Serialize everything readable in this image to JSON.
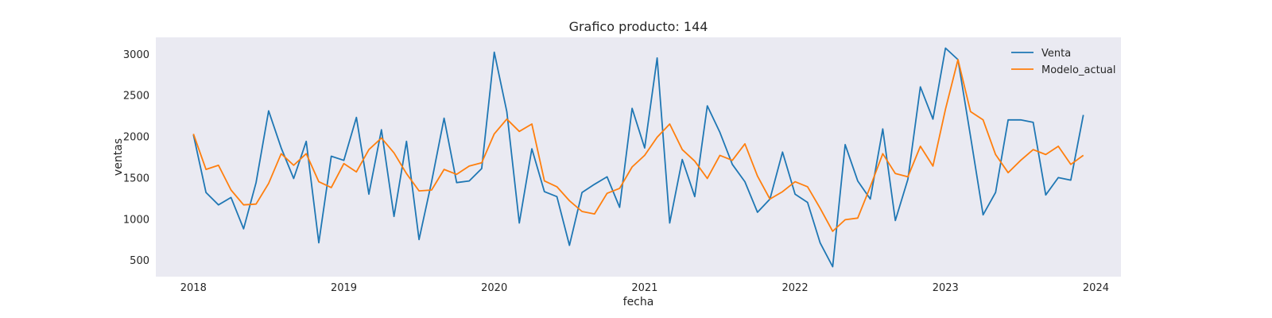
{
  "chart_data": {
    "type": "line",
    "title": "Grafico producto: 144",
    "xlabel": "fecha",
    "ylabel": "ventas",
    "x_ticks": [
      "2018",
      "2019",
      "2020",
      "2021",
      "2022",
      "2023",
      "2024"
    ],
    "y_ticks": [
      500,
      1000,
      1500,
      2000,
      2500,
      3000
    ],
    "xlim": [
      "2017-10",
      "2024-03"
    ],
    "ylim": [
      300,
      3200
    ],
    "grid": false,
    "legend_position": "top-right",
    "background": "#eaeaf2",
    "x": [
      "2018-01",
      "2018-02",
      "2018-03",
      "2018-04",
      "2018-05",
      "2018-06",
      "2018-07",
      "2018-08",
      "2018-09",
      "2018-10",
      "2018-11",
      "2018-12",
      "2019-01",
      "2019-02",
      "2019-03",
      "2019-04",
      "2019-05",
      "2019-06",
      "2019-07",
      "2019-08",
      "2019-09",
      "2019-10",
      "2019-11",
      "2019-12",
      "2020-01",
      "2020-02",
      "2020-03",
      "2020-04",
      "2020-05",
      "2020-06",
      "2020-07",
      "2020-08",
      "2020-09",
      "2020-10",
      "2020-11",
      "2020-12",
      "2021-01",
      "2021-02",
      "2021-03",
      "2021-04",
      "2021-05",
      "2021-06",
      "2021-07",
      "2021-08",
      "2021-09",
      "2021-10",
      "2021-11",
      "2021-12",
      "2022-01",
      "2022-02",
      "2022-03",
      "2022-04",
      "2022-05",
      "2022-06",
      "2022-07",
      "2022-08",
      "2022-09",
      "2022-10",
      "2022-11",
      "2022-12",
      "2023-01",
      "2023-02",
      "2023-03",
      "2023-04",
      "2023-05",
      "2023-06",
      "2023-07",
      "2023-08",
      "2023-09",
      "2023-10",
      "2023-11",
      "2023-12"
    ],
    "series": [
      {
        "name": "Venta",
        "color": "#1f77b4",
        "values": [
          2020,
          1320,
          1170,
          1260,
          880,
          1440,
          2310,
          1860,
          1490,
          1940,
          710,
          1760,
          1710,
          2230,
          1300,
          2080,
          1030,
          1940,
          750,
          1450,
          2220,
          1440,
          1460,
          1610,
          3020,
          2300,
          950,
          1850,
          1330,
          1270,
          680,
          1320,
          1420,
          1510,
          1140,
          2340,
          1860,
          2950,
          950,
          1720,
          1270,
          2370,
          2050,
          1660,
          1450,
          1080,
          1240,
          1810,
          1300,
          1200,
          710,
          420,
          1900,
          1460,
          1240,
          2090,
          980,
          1480,
          2600,
          2210,
          3070,
          2930,
          2000,
          1050,
          1320,
          2200,
          2200,
          2170,
          1290,
          1500,
          1470,
          2260
        ]
      },
      {
        "name": "Modelo_actual",
        "color": "#ff7f0e",
        "values": [
          2030,
          1600,
          1650,
          1350,
          1170,
          1180,
          1430,
          1790,
          1650,
          1790,
          1450,
          1380,
          1670,
          1570,
          1840,
          1980,
          1800,
          1550,
          1340,
          1350,
          1600,
          1540,
          1640,
          1680,
          2030,
          2210,
          2060,
          2150,
          1460,
          1390,
          1220,
          1090,
          1060,
          1310,
          1370,
          1630,
          1770,
          1990,
          2150,
          1840,
          1700,
          1490,
          1770,
          1710,
          1910,
          1520,
          1240,
          1330,
          1450,
          1390,
          1130,
          850,
          990,
          1010,
          1390,
          1790,
          1550,
          1510,
          1880,
          1640,
          2330,
          2930,
          2300,
          2200,
          1780,
          1560,
          1710,
          1840,
          1780,
          1880,
          1660,
          1770
        ]
      }
    ]
  }
}
